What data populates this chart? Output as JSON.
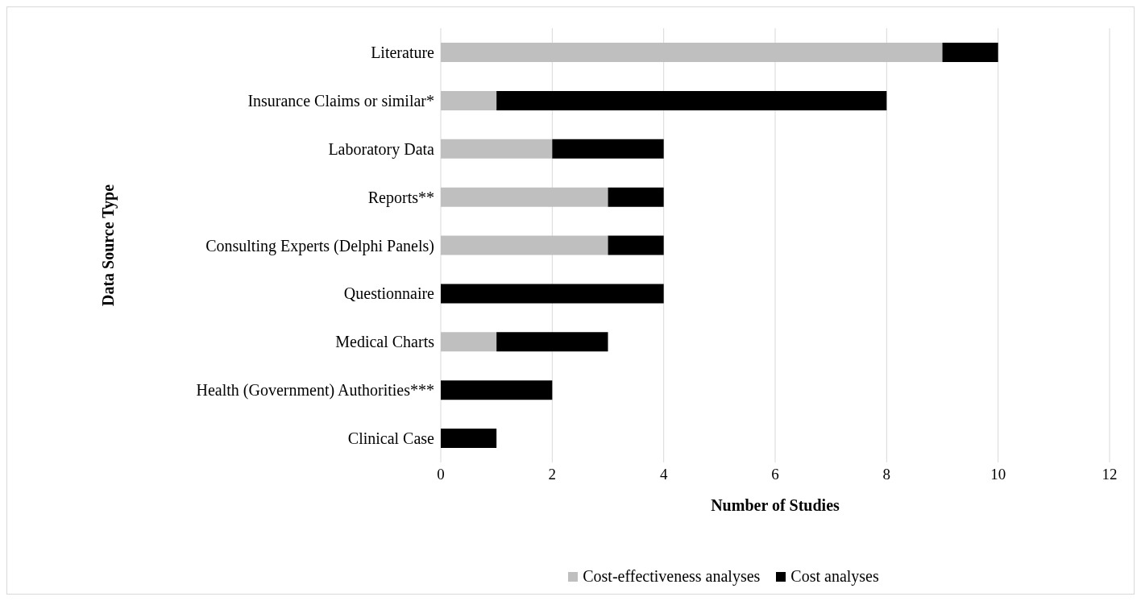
{
  "chart_data": {
    "type": "bar",
    "orientation": "horizontal",
    "stacked": true,
    "categories": [
      "Literature",
      "Insurance Claims or similar*",
      "Laboratory Data",
      "Reports**",
      "Consulting Experts (Delphi Panels)",
      "Questionnaire",
      "Medical Charts",
      "Health (Government) Authorities***",
      "Clinical Case"
    ],
    "series": [
      {
        "name": "Cost-effectiveness analyses",
        "color": "#bfbfbf",
        "values": [
          9,
          1,
          2,
          3,
          3,
          0,
          1,
          0,
          0
        ]
      },
      {
        "name": "Cost analyses",
        "color": "#000000",
        "values": [
          1,
          7,
          2,
          1,
          1,
          4,
          2,
          2,
          1
        ]
      }
    ],
    "xlim": [
      0,
      12
    ],
    "xticks": [
      0,
      2,
      4,
      6,
      8,
      10,
      12
    ],
    "xlabel": "Number of Studies",
    "ylabel": "Data Source Type",
    "grid": "x",
    "legend": "bottom"
  }
}
